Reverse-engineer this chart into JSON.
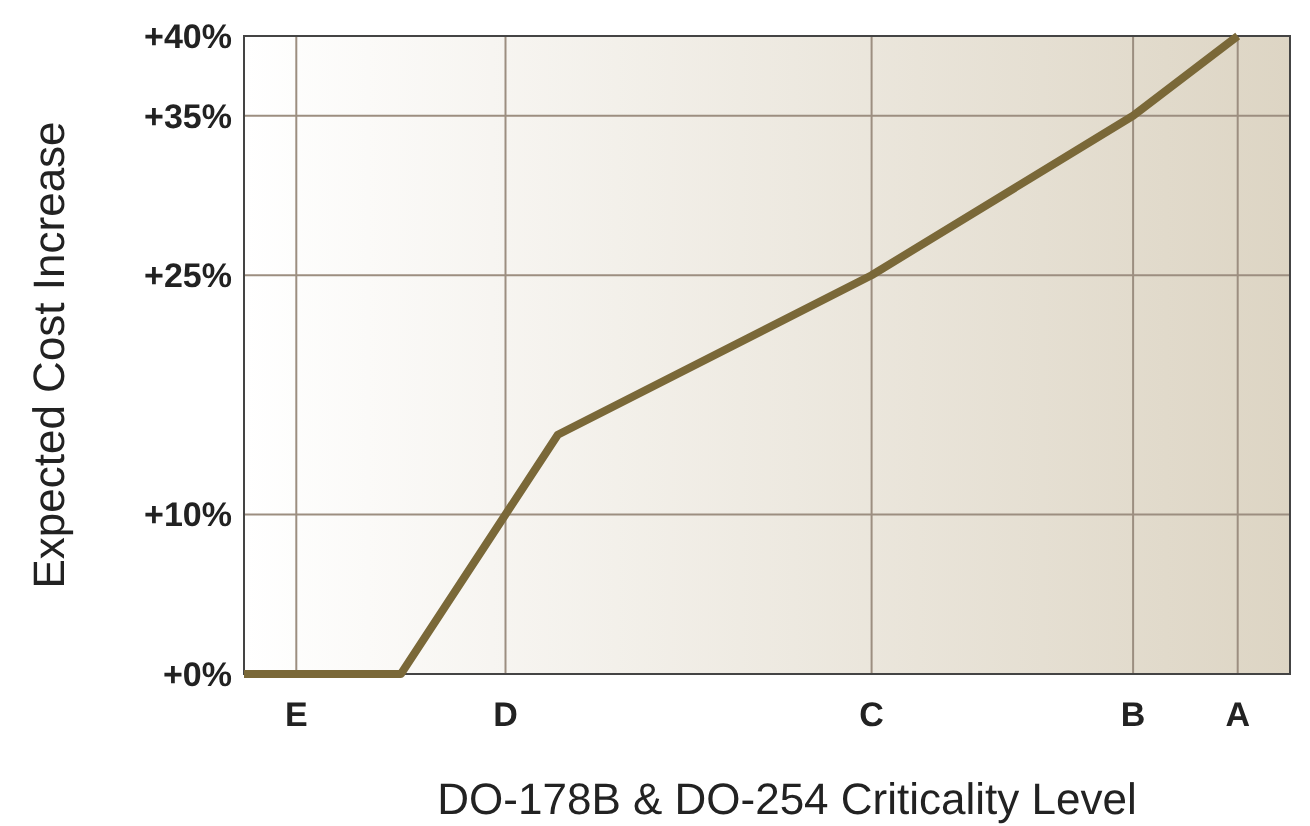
{
  "chart_data": {
    "type": "line",
    "xlabel": "DO-178B & DO-254 Criticality Level",
    "ylabel": "Expected Cost Increase",
    "categories": [
      null,
      "E",
      null,
      null,
      null,
      "D",
      null,
      null,
      null,
      null,
      null,
      null,
      "C",
      null,
      null,
      null,
      null,
      "B",
      null,
      "A",
      null
    ],
    "series": [
      {
        "color": "#7a6838",
        "values": [
          0,
          null,
          null,
          0,
          null,
          10,
          15,
          null,
          null,
          null,
          null,
          null,
          25,
          null,
          null,
          null,
          null,
          35,
          null,
          40,
          null
        ]
      }
    ],
    "ylim": [
      0,
      40
    ],
    "yticks": [
      {
        "value": 0,
        "label": "+0%"
      },
      {
        "value": 10,
        "label": "+10%"
      },
      {
        "value": 25,
        "label": "+25%"
      },
      {
        "value": 35,
        "label": "+35%"
      },
      {
        "value": 40,
        "label": "+40%"
      }
    ],
    "grid": true,
    "marker": "none",
    "line_style": "solid"
  }
}
